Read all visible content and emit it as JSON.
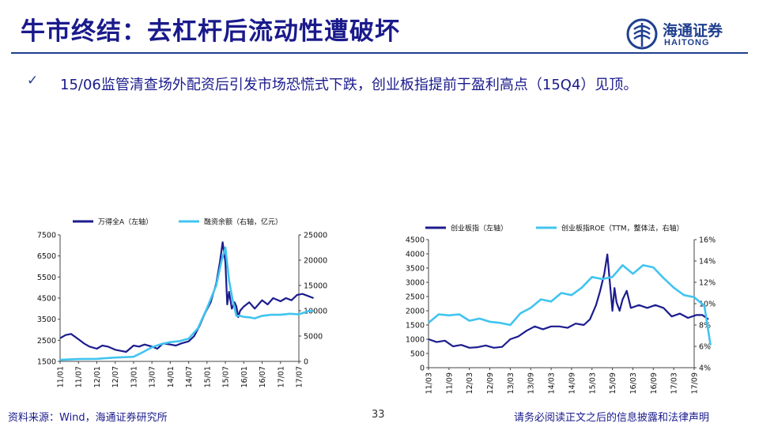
{
  "header": {
    "title": "牛市终结：去杠杆后流动性遭破坏",
    "logo_cn": "海通证券",
    "logo_en": "HAITONG"
  },
  "bullet": {
    "mark": "✓",
    "text": "15/06监管清查场外配资后引发市场恐慌式下跌，创业板指提前于盈利高点（15Q4）见顶。"
  },
  "footer": {
    "source": "资料来源：Wind，海通证券研究所",
    "page": "33",
    "disclaimer": "请务必阅读正文之后的信息披露和法律声明"
  },
  "colors": {
    "primary": "#1a1a8c",
    "dark_series": "#1c1c8e",
    "light_series": "#41c4ef",
    "rule": "#1f3f8f"
  },
  "chart_data": [
    {
      "type": "line",
      "legend": [
        "万得全A（左轴）",
        "融资余额（右轴，亿元）"
      ],
      "categories": [
        "11/01",
        "11/07",
        "12/01",
        "12/07",
        "13/01",
        "13/07",
        "14/01",
        "14/07",
        "15/01",
        "15/07",
        "16/01",
        "16/07",
        "17/01",
        "17/07"
      ],
      "y_left": {
        "ticks": [
          1500,
          2500,
          3500,
          4500,
          5500,
          6500,
          7500
        ],
        "lim": [
          1500,
          7500
        ]
      },
      "y_right": {
        "ticks": [
          0,
          5000,
          10000,
          15000,
          20000,
          25000
        ],
        "lim": [
          0,
          25000
        ]
      },
      "series": [
        {
          "name": "万得全A（左轴）",
          "axis": "left",
          "x": [
            0,
            0.3,
            0.6,
            1,
            1.3,
            1.6,
            2,
            2.3,
            2.6,
            3,
            3.3,
            3.6,
            4,
            4.3,
            4.6,
            5,
            5.3,
            5.6,
            6,
            6.3,
            6.6,
            7,
            7.3,
            7.6,
            7.9,
            8.2,
            8.5,
            8.7,
            8.85,
            9,
            9.1,
            9.2,
            9.35,
            9.5,
            9.6,
            9.7,
            9.8,
            10,
            10.3,
            10.6,
            11,
            11.3,
            11.6,
            12,
            12.3,
            12.6,
            12.9,
            13.2,
            13.5,
            13.8
          ],
          "values": [
            2600,
            2750,
            2800,
            2550,
            2350,
            2200,
            2100,
            2250,
            2200,
            2050,
            2000,
            1950,
            2250,
            2200,
            2300,
            2200,
            2100,
            2350,
            2300,
            2250,
            2350,
            2450,
            2700,
            3200,
            3800,
            4300,
            5200,
            6200,
            7150,
            6200,
            4200,
            4800,
            4000,
            4300,
            4100,
            3600,
            3900,
            4100,
            4300,
            4000,
            4400,
            4200,
            4500,
            4350,
            4500,
            4400,
            4650,
            4700,
            4600,
            4500
          ]
        },
        {
          "name": "融资余额（右轴，亿元）",
          "axis": "right",
          "x": [
            0,
            1,
            2,
            3,
            4,
            4.5,
            5,
            5.5,
            6,
            6.5,
            7,
            7.5,
            8,
            8.5,
            8.8,
            9,
            9.2,
            9.4,
            9.6,
            9.8,
            10,
            10.3,
            10.6,
            11,
            11.5,
            12,
            12.5,
            13,
            13.5,
            13.8
          ],
          "values": [
            300,
            450,
            500,
            750,
            900,
            1800,
            2800,
            3400,
            3800,
            4000,
            4500,
            6500,
            10500,
            15000,
            20000,
            22500,
            16000,
            12000,
            9000,
            9000,
            8800,
            8700,
            8500,
            9000,
            9200,
            9200,
            9400,
            9300,
            9900,
            10000
          ]
        }
      ]
    },
    {
      "type": "line",
      "legend": [
        "创业板指（左轴）",
        "创业板指ROE（TTM，整体法，右轴）"
      ],
      "categories": [
        "11/03",
        "11/09",
        "12/03",
        "12/09",
        "13/03",
        "13/09",
        "14/03",
        "14/09",
        "15/03",
        "15/09",
        "16/03",
        "16/09",
        "17/03",
        "17/09"
      ],
      "y_left": {
        "ticks": [
          0,
          500,
          1000,
          1500,
          2000,
          2500,
          3000,
          3500,
          4000,
          4500
        ],
        "lim": [
          0,
          4500
        ]
      },
      "y_right": {
        "ticks": [
          "4%",
          "6%",
          "8%",
          "10%",
          "12%",
          "14%",
          "16%"
        ],
        "lim": [
          4,
          16
        ]
      },
      "series": [
        {
          "name": "创业板指（左轴）",
          "axis": "left",
          "x": [
            0,
            0.4,
            0.8,
            1.2,
            1.6,
            2,
            2.4,
            2.8,
            3.2,
            3.6,
            4,
            4.4,
            4.8,
            5.2,
            5.6,
            6,
            6.4,
            6.8,
            7.2,
            7.6,
            7.9,
            8.2,
            8.4,
            8.6,
            8.75,
            8.85,
            9,
            9.1,
            9.2,
            9.35,
            9.5,
            9.7,
            9.9,
            10.3,
            10.7,
            11.1,
            11.5,
            11.9,
            12.3,
            12.7,
            13.1,
            13.4,
            13.7
          ],
          "values": [
            1000,
            900,
            950,
            750,
            800,
            700,
            720,
            780,
            700,
            730,
            1000,
            1100,
            1300,
            1450,
            1350,
            1450,
            1450,
            1400,
            1550,
            1500,
            1700,
            2200,
            2700,
            3300,
            3980,
            3200,
            2000,
            2800,
            2300,
            2000,
            2400,
            2700,
            2100,
            2200,
            2100,
            2200,
            2100,
            1800,
            1900,
            1750,
            1850,
            1850,
            1700
          ]
        },
        {
          "name": "创业板指ROE（TTM，整体法，右轴）",
          "axis": "right",
          "x": [
            0,
            0.5,
            1,
            1.5,
            2,
            2.5,
            3,
            3.5,
            4,
            4.5,
            5,
            5.5,
            6,
            6.5,
            7,
            7.5,
            8,
            8.5,
            9,
            9.5,
            10,
            10.5,
            11,
            11.5,
            12,
            12.5,
            13,
            13.5,
            13.8
          ],
          "values": [
            8.2,
            9.0,
            8.9,
            9.0,
            8.4,
            8.6,
            8.3,
            8.2,
            8.0,
            9.1,
            9.6,
            10.4,
            10.2,
            11.0,
            10.8,
            11.5,
            12.5,
            12.3,
            12.5,
            13.6,
            12.8,
            13.6,
            13.4,
            12.4,
            11.5,
            10.8,
            10.6,
            9.8,
            6.1
          ]
        }
      ]
    }
  ]
}
